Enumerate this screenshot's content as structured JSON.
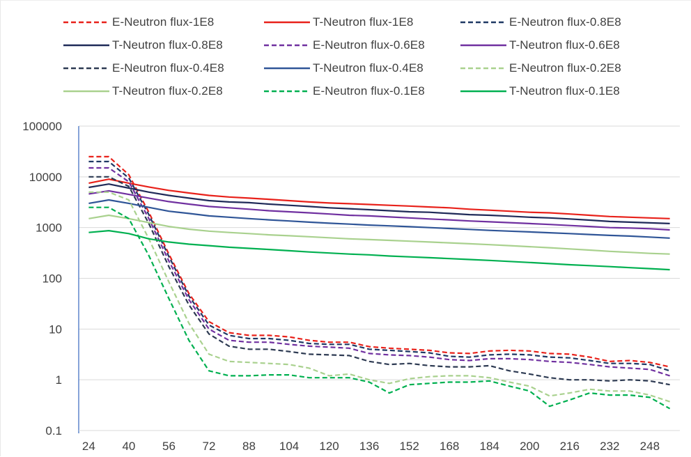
{
  "chart_data": {
    "type": "line",
    "title": "",
    "xlabel": "",
    "ylabel": "",
    "y_scale": "log",
    "ylim": [
      0.1,
      100000
    ],
    "y_ticks": [
      "0.1",
      "1",
      "10",
      "100",
      "1000",
      "10000",
      "100000"
    ],
    "x_tick_labels": [
      "24",
      "40",
      "56",
      "72",
      "88",
      "104",
      "120",
      "136",
      "152",
      "168",
      "184",
      "200",
      "216",
      "232",
      "248"
    ],
    "x": [
      24,
      32,
      40,
      48,
      56,
      64,
      72,
      80,
      88,
      96,
      104,
      112,
      120,
      128,
      136,
      144,
      152,
      160,
      168,
      176,
      184,
      192,
      200,
      208,
      216,
      224,
      232,
      240,
      248,
      256
    ],
    "grid": "horizontal",
    "legend_position": "top",
    "series": [
      {
        "name": "E-Neutron flux-1E8",
        "color": "#e8211a",
        "dash": "dashed",
        "values": [
          25000,
          25000,
          11000,
          2000,
          300,
          50,
          14,
          8.5,
          7.5,
          7.5,
          7,
          6,
          5.5,
          5.5,
          4.5,
          4.2,
          4,
          3.8,
          3.4,
          3.3,
          3.7,
          3.8,
          3.7,
          3.3,
          3.2,
          2.8,
          2.3,
          2.4,
          2.2,
          1.8
        ]
      },
      {
        "name": "T-Neutron flux-1E8",
        "color": "#e8211a",
        "dash": "solid",
        "values": [
          7500,
          9000,
          7500,
          6300,
          5400,
          4800,
          4300,
          4000,
          3800,
          3600,
          3400,
          3200,
          3050,
          2950,
          2850,
          2750,
          2650,
          2550,
          2450,
          2300,
          2200,
          2100,
          2000,
          1950,
          1850,
          1750,
          1650,
          1600,
          1550,
          1500
        ]
      },
      {
        "name": "E-Neutron flux-0.8E8",
        "color": "#1f3864",
        "dash": "dashed",
        "values": [
          20000,
          20000,
          9500,
          1800,
          270,
          45,
          12,
          7.5,
          6.5,
          6.5,
          6,
          5.2,
          5,
          5,
          4,
          3.8,
          3.6,
          3.4,
          2.9,
          2.8,
          3.1,
          3.2,
          3.1,
          2.8,
          2.7,
          2.4,
          2.1,
          2.1,
          2,
          1.5
        ]
      },
      {
        "name": "T-Neutron flux-0.8E8",
        "color": "#1f2a58",
        "dash": "solid",
        "values": [
          6200,
          7200,
          6000,
          5000,
          4300,
          3800,
          3400,
          3200,
          3100,
          2900,
          2750,
          2600,
          2450,
          2350,
          2250,
          2150,
          2050,
          2000,
          1900,
          1800,
          1750,
          1680,
          1600,
          1550,
          1480,
          1400,
          1320,
          1280,
          1240,
          1200
        ]
      },
      {
        "name": "E-Neutron flux-0.6E8",
        "color": "#7030a0",
        "dash": "dashed",
        "values": [
          15000,
          15000,
          8000,
          1500,
          220,
          38,
          10,
          6,
          5.5,
          5.5,
          5,
          4.6,
          4.4,
          4.2,
          3.3,
          3.1,
          3,
          2.8,
          2.5,
          2.4,
          2.6,
          2.6,
          2.5,
          2.3,
          2.2,
          2,
          1.8,
          1.7,
          1.6,
          1.2
        ]
      },
      {
        "name": "T-Neutron flux-0.6E8",
        "color": "#7030a0",
        "dash": "solid",
        "values": [
          4600,
          5300,
          4500,
          3800,
          3250,
          2900,
          2600,
          2450,
          2300,
          2150,
          2050,
          1950,
          1850,
          1750,
          1700,
          1620,
          1550,
          1480,
          1420,
          1350,
          1300,
          1250,
          1200,
          1150,
          1100,
          1050,
          1000,
          980,
          950,
          900
        ]
      },
      {
        "name": "E-Neutron flux-0.4E8",
        "color": "#2d3a52",
        "dash": "dashed",
        "values": [
          10000,
          10000,
          6500,
          1200,
          170,
          30,
          8,
          4.6,
          4,
          4,
          3.6,
          3.2,
          3.1,
          3,
          2.3,
          2,
          2.1,
          1.9,
          1.8,
          1.8,
          1.9,
          1.5,
          1.3,
          1.1,
          1,
          1,
          0.95,
          1,
          0.95,
          0.8
        ]
      },
      {
        "name": "T-Neutron flux-0.4E8",
        "color": "#2f5597",
        "dash": "solid",
        "values": [
          3000,
          3500,
          3000,
          2500,
          2100,
          1900,
          1700,
          1600,
          1500,
          1420,
          1350,
          1280,
          1220,
          1170,
          1120,
          1080,
          1040,
          1000,
          960,
          920,
          880,
          850,
          820,
          790,
          760,
          730,
          700,
          680,
          650,
          620
        ]
      },
      {
        "name": "E-Neutron flux-0.2E8",
        "color": "#a9d18e",
        "dash": "dashed",
        "values": [
          5000,
          5000,
          3500,
          600,
          85,
          13,
          3.2,
          2.3,
          2.2,
          2.1,
          2,
          1.7,
          1.2,
          1.3,
          1,
          0.85,
          1.05,
          1.15,
          1.2,
          1.2,
          1.1,
          0.9,
          0.75,
          0.48,
          0.55,
          0.65,
          0.6,
          0.6,
          0.5,
          0.37
        ]
      },
      {
        "name": "T-Neutron flux-0.2E8",
        "color": "#a9d18e",
        "dash": "solid",
        "values": [
          1500,
          1750,
          1500,
          1250,
          1050,
          930,
          850,
          800,
          760,
          720,
          690,
          660,
          630,
          600,
          580,
          560,
          540,
          520,
          500,
          480,
          460,
          440,
          420,
          400,
          380,
          360,
          340,
          325,
          310,
          300
        ]
      },
      {
        "name": "E-Neutron flux-0.1E8",
        "color": "#00b050",
        "dash": "dashed",
        "values": [
          2500,
          2500,
          1500,
          280,
          40,
          6,
          1.5,
          1.2,
          1.2,
          1.25,
          1.25,
          1.1,
          1.1,
          1.1,
          0.9,
          0.55,
          0.8,
          0.85,
          0.9,
          0.9,
          0.95,
          0.75,
          0.6,
          0.3,
          0.4,
          0.55,
          0.5,
          0.5,
          0.45,
          0.27
        ]
      },
      {
        "name": "T-Neutron flux-0.1E8",
        "color": "#00b050",
        "dash": "solid",
        "values": [
          800,
          870,
          760,
          600,
          520,
          470,
          440,
          410,
          390,
          370,
          350,
          330,
          315,
          300,
          290,
          275,
          265,
          255,
          245,
          235,
          225,
          215,
          205,
          195,
          185,
          178,
          170,
          162,
          155,
          148
        ]
      }
    ]
  }
}
